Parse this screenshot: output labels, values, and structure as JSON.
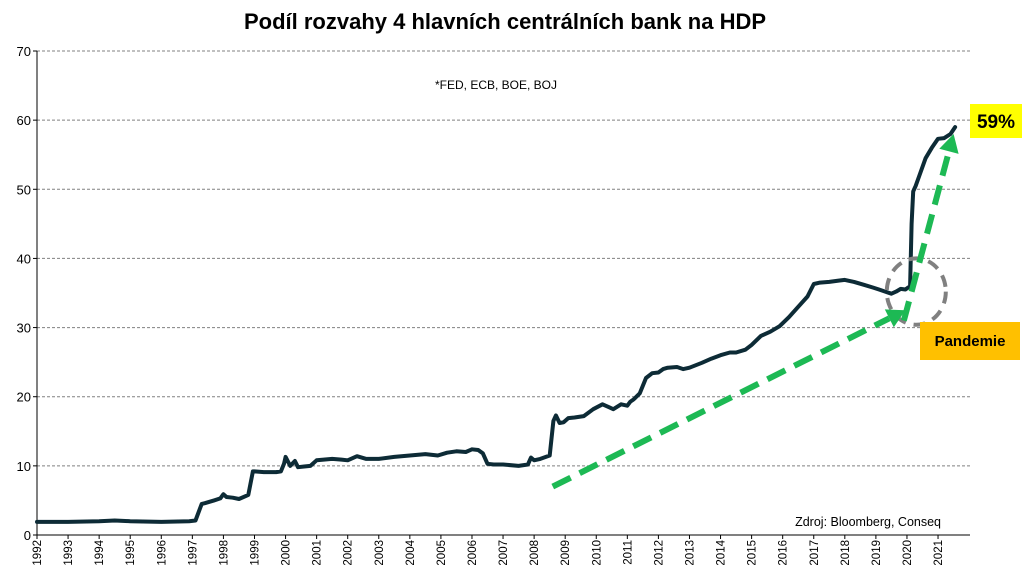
{
  "chart_data": {
    "type": "line",
    "title": "Podíl rozvahy 4 hlavních centrálních bank na HDP",
    "subtitle": "*FED, ECB, BOE, BOJ",
    "source": "Zdroj: Bloomberg, Conseq",
    "xlabel": "",
    "ylabel": "",
    "xlim": [
      1992,
      2021.7
    ],
    "ylim": [
      0,
      70
    ],
    "yticks": [
      "0",
      "10",
      "20",
      "30",
      "40",
      "50",
      "60",
      "70"
    ],
    "xticks": [
      "1992",
      "1993",
      "1994",
      "1995",
      "1996",
      "1997",
      "1998",
      "1999",
      "2000",
      "2001",
      "2002",
      "2003",
      "2004",
      "2005",
      "2006",
      "2007",
      "2008",
      "2009",
      "2010",
      "2011",
      "2012",
      "2013",
      "2014",
      "2015",
      "2016",
      "2017",
      "2018",
      "2019",
      "2020",
      "2021"
    ],
    "grid": "horizontal-dashed",
    "colors": {
      "line": "#0d2b36",
      "arrow": "#1db954",
      "circle": "#808080",
      "label_59_bg": "#ffff00",
      "label_pandemie_bg": "#ffc000"
    },
    "series": [
      {
        "x": [
          1992.0,
          1993.0,
          1994.0,
          1994.5,
          1995.0,
          1996.0,
          1996.9,
          1997.1,
          1997.3,
          1997.4,
          1997.7,
          1997.9,
          1998.0,
          1998.1,
          1998.3,
          1998.5,
          1998.8,
          1998.95,
          1999.0,
          1999.3,
          1999.7,
          1999.85,
          1999.95,
          2000.0,
          2000.15,
          2000.3,
          2000.4,
          2000.6,
          2000.8,
          2001.0,
          2001.5,
          2001.8,
          2002.0,
          2002.3,
          2002.6,
          2003.0,
          2003.5,
          2004.0,
          2004.5,
          2004.9,
          2005.2,
          2005.5,
          2005.8,
          2006.0,
          2006.2,
          2006.35,
          2006.5,
          2006.7,
          2007.0,
          2007.5,
          2007.8,
          2007.9,
          2008.0,
          2008.2,
          2008.5,
          2008.62,
          2008.7,
          2008.82,
          2008.95,
          2009.1,
          2009.3,
          2009.6,
          2009.9,
          2010.2,
          2010.4,
          2010.55,
          2010.8,
          2011.0,
          2011.1,
          2011.2,
          2011.4,
          2011.6,
          2011.8,
          2012.0,
          2012.15,
          2012.3,
          2012.6,
          2012.8,
          2013.0,
          2013.4,
          2013.7,
          2014.0,
          2014.3,
          2014.5,
          2014.8,
          2015.0,
          2015.3,
          2015.6,
          2015.9,
          2016.2,
          2016.5,
          2016.8,
          2017.0,
          2017.2,
          2017.5,
          2017.8,
          2018.0,
          2018.3,
          2018.6,
          2018.9,
          2019.1,
          2019.3,
          2019.5,
          2019.65,
          2019.8,
          2019.95,
          2020.1,
          2020.15,
          2020.2,
          2020.28,
          2020.4,
          2020.6,
          2020.8,
          2021.0,
          2021.2,
          2021.4,
          2021.55
        ],
        "values": [
          1.9,
          1.9,
          2.0,
          2.1,
          2.0,
          1.9,
          2.0,
          2.1,
          4.5,
          4.6,
          5.0,
          5.3,
          5.9,
          5.5,
          5.4,
          5.2,
          5.8,
          9.2,
          9.2,
          9.1,
          9.1,
          9.2,
          10.3,
          11.3,
          10.0,
          10.7,
          9.8,
          9.9,
          10.0,
          10.8,
          11.0,
          10.9,
          10.8,
          11.4,
          11.0,
          11.0,
          11.3,
          11.5,
          11.7,
          11.5,
          11.9,
          12.1,
          12.0,
          12.4,
          12.3,
          11.8,
          10.3,
          10.2,
          10.2,
          10.0,
          10.2,
          11.2,
          10.8,
          11.0,
          11.5,
          16.5,
          17.3,
          16.2,
          16.3,
          16.9,
          17.0,
          17.2,
          18.2,
          18.9,
          18.5,
          18.2,
          18.9,
          18.7,
          19.3,
          19.6,
          20.5,
          22.7,
          23.4,
          23.5,
          24.0,
          24.2,
          24.3,
          24.0,
          24.2,
          24.9,
          25.5,
          26.0,
          26.4,
          26.4,
          26.8,
          27.5,
          28.8,
          29.4,
          30.2,
          31.5,
          33.0,
          34.5,
          36.3,
          36.5,
          36.6,
          36.8,
          36.9,
          36.6,
          36.2,
          35.8,
          35.5,
          35.2,
          34.9,
          35.2,
          35.6,
          35.5,
          36.0,
          45.0,
          49.7,
          50.5,
          52.0,
          54.5,
          56.0,
          57.3,
          57.4,
          58.0,
          59.0
        ]
      }
    ],
    "annotations": {
      "label_59": "59%",
      "label_pandemie": "Pandemie",
      "arrow_1": {
        "from": [
          2008.6,
          7.0
        ],
        "to": [
          2019.95,
          32.5
        ]
      },
      "arrow_2": {
        "from": [
          2019.9,
          31.0
        ],
        "to": [
          2021.5,
          58.0
        ]
      },
      "circle": {
        "center": [
          2020.3,
          35.2
        ],
        "rx_years": 0.95,
        "ry_value": 4.8
      }
    }
  }
}
